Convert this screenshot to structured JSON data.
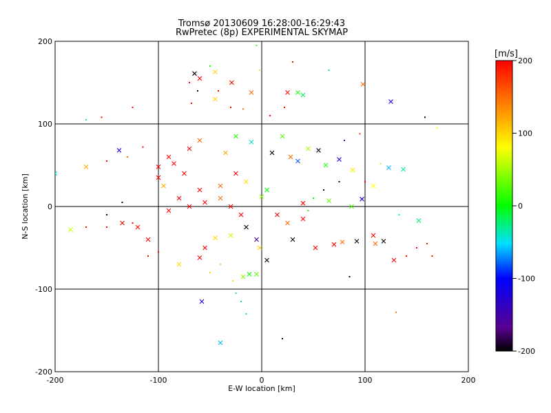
{
  "chart_data": {
    "type": "scatter",
    "title": "Tromsø 20130609 16:28:00-16:29:43",
    "subtitle": "RwPretec (8p) EXPERIMENTAL SKYMAP",
    "xlabel": "E-W location [km]",
    "ylabel": "N-S location [km]",
    "xlim": [
      -200,
      200
    ],
    "ylim": [
      -200,
      200
    ],
    "xticks": [
      "-200",
      "-100",
      "0",
      "100",
      "200"
    ],
    "yticks": [
      "-200",
      "-100",
      "0",
      "100",
      "200"
    ],
    "grid": true,
    "colorbar": {
      "label": "[m/s]",
      "range": [
        -200,
        200
      ],
      "ticks": [
        "200",
        "100",
        "0",
        "-100",
        "-200"
      ],
      "colormap": [
        "#000000",
        "#5a0090",
        "#0000ff",
        "#00e0ff",
        "#00ff00",
        "#ffff00",
        "#ff8000",
        "#ff0000"
      ]
    },
    "series": [
      {
        "marker": "cross",
        "points": [
          [
            -65,
            161,
            -200
          ],
          [
            -60,
            155,
            200
          ],
          [
            -45,
            163,
            100
          ],
          [
            -10,
            138,
            150
          ],
          [
            25,
            138,
            200
          ],
          [
            35,
            138,
            10
          ],
          [
            40,
            135,
            -20
          ],
          [
            98,
            148,
            150
          ],
          [
            125,
            127,
            -120
          ],
          [
            -29,
            150,
            200
          ],
          [
            -45,
            130,
            100
          ],
          [
            -100,
            48,
            200
          ],
          [
            -138,
            68,
            -120
          ],
          [
            -170,
            48,
            120
          ],
          [
            -200,
            40,
            -40
          ],
          [
            -185,
            -28,
            60
          ],
          [
            -85,
            52,
            200
          ],
          [
            -70,
            70,
            200
          ],
          [
            -60,
            80,
            150
          ],
          [
            -35,
            65,
            120
          ],
          [
            -25,
            85,
            10
          ],
          [
            -10,
            78,
            -40
          ],
          [
            10,
            65,
            -200
          ],
          [
            20,
            85,
            30
          ],
          [
            28,
            60,
            150
          ],
          [
            35,
            55,
            -80
          ],
          [
            45,
            70,
            50
          ],
          [
            55,
            68,
            -200
          ],
          [
            62,
            50,
            10
          ],
          [
            75,
            57,
            -120
          ],
          [
            88,
            44,
            90
          ],
          [
            97,
            9,
            -120
          ],
          [
            123,
            47,
            -60
          ],
          [
            137,
            45,
            -30
          ],
          [
            108,
            25,
            80
          ],
          [
            87,
            0,
            20
          ],
          [
            65,
            7,
            30
          ],
          [
            40,
            4,
            200
          ],
          [
            15,
            -10,
            200
          ],
          [
            25,
            -20,
            150
          ],
          [
            40,
            -15,
            200
          ],
          [
            -100,
            35,
            200
          ],
          [
            -95,
            25,
            120
          ],
          [
            -110,
            -40,
            200
          ],
          [
            -90,
            -5,
            200
          ],
          [
            -80,
            10,
            200
          ],
          [
            -70,
            0,
            200
          ],
          [
            -55,
            5,
            200
          ],
          [
            -40,
            10,
            150
          ],
          [
            -30,
            0,
            200
          ],
          [
            -20,
            -10,
            200
          ],
          [
            -15,
            -25,
            -200
          ],
          [
            -5,
            -40,
            -150
          ],
          [
            -2,
            -50,
            100
          ],
          [
            5,
            -65,
            -200
          ],
          [
            -45,
            -38,
            100
          ],
          [
            -55,
            -50,
            200
          ],
          [
            -60,
            -62,
            200
          ],
          [
            -80,
            -70,
            100
          ],
          [
            -30,
            -35,
            60
          ],
          [
            -120,
            -25,
            200
          ],
          [
            -135,
            -20,
            200
          ],
          [
            30,
            -40,
            -200
          ],
          [
            52,
            -50,
            200
          ],
          [
            70,
            -46,
            200
          ],
          [
            78,
            -43,
            150
          ],
          [
            92,
            -42,
            -200
          ],
          [
            108,
            -35,
            200
          ],
          [
            118,
            -42,
            -200
          ],
          [
            128,
            -65,
            200
          ],
          [
            152,
            -17,
            -20
          ],
          [
            110,
            -45,
            150
          ],
          [
            -58,
            -115,
            -120
          ],
          [
            -40,
            -165,
            -60
          ],
          [
            -18,
            -85,
            40
          ],
          [
            -12,
            -82,
            0
          ],
          [
            -5,
            -82,
            30
          ],
          [
            0,
            12,
            40
          ],
          [
            5,
            20,
            0
          ],
          [
            -15,
            30,
            100
          ],
          [
            -25,
            40,
            200
          ],
          [
            -40,
            25,
            150
          ],
          [
            -60,
            20,
            200
          ],
          [
            -75,
            40,
            200
          ],
          [
            -90,
            60,
            200
          ]
        ]
      },
      {
        "marker": "dot",
        "points": [
          [
            -70,
            150,
            200
          ],
          [
            -62,
            140,
            -200
          ],
          [
            -68,
            125,
            200
          ],
          [
            -30,
            120,
            200
          ],
          [
            -5,
            195,
            20
          ],
          [
            30,
            175,
            200
          ],
          [
            65,
            165,
            -20
          ],
          [
            -155,
            108,
            200
          ],
          [
            -125,
            120,
            200
          ],
          [
            -170,
            105,
            -30
          ],
          [
            158,
            108,
            -200
          ],
          [
            170,
            95,
            80
          ],
          [
            -150,
            55,
            200
          ],
          [
            -130,
            60,
            150
          ],
          [
            -115,
            72,
            200
          ],
          [
            -170,
            -25,
            200
          ],
          [
            -150,
            -25,
            200
          ],
          [
            -135,
            5,
            -200
          ],
          [
            -125,
            -20,
            200
          ],
          [
            -110,
            -60,
            200
          ],
          [
            -40,
            -70,
            100
          ],
          [
            -50,
            -80,
            100
          ],
          [
            -28,
            -90,
            100
          ],
          [
            -25,
            -105,
            -20
          ],
          [
            -20,
            -115,
            -20
          ],
          [
            -15,
            -130,
            -20
          ],
          [
            20,
            -160,
            -200
          ],
          [
            85,
            -85,
            -200
          ],
          [
            130,
            -128,
            150
          ],
          [
            140,
            -60,
            200
          ],
          [
            150,
            -50,
            200
          ],
          [
            160,
            -45,
            200
          ],
          [
            165,
            -60,
            200
          ],
          [
            133,
            -10,
            -40
          ],
          [
            -50,
            170,
            10
          ],
          [
            -2,
            165,
            60
          ],
          [
            -42,
            140,
            200
          ],
          [
            -18,
            118,
            150
          ],
          [
            8,
            110,
            200
          ],
          [
            22,
            120,
            200
          ],
          [
            95,
            88,
            180
          ],
          [
            80,
            80,
            -100
          ],
          [
            100,
            30,
            200
          ],
          [
            115,
            52,
            100
          ],
          [
            75,
            30,
            -200
          ],
          [
            60,
            20,
            -200
          ],
          [
            50,
            10,
            0
          ],
          [
            45,
            -5,
            0
          ],
          [
            -150,
            -10,
            -200
          ],
          [
            -100,
            -55,
            200
          ]
        ]
      }
    ]
  }
}
